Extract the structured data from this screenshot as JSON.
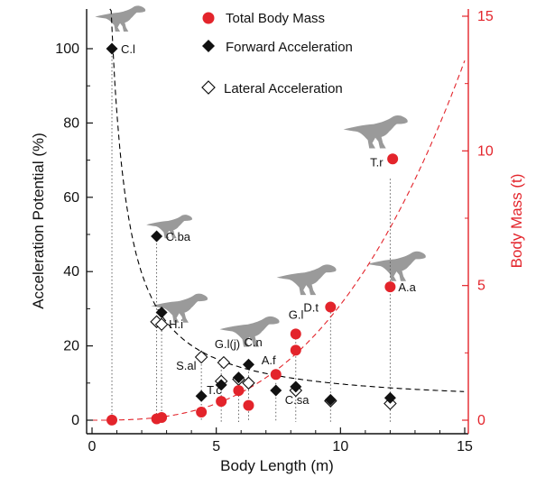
{
  "chart_data": {
    "type": "scatter",
    "title": "",
    "xlabel": "Body Length (m)",
    "ylabel_left": "Acceleration Potential (%)",
    "ylabel_right": "Body Mass (t)",
    "xlim": [
      0,
      15
    ],
    "ylim_left": [
      0,
      110
    ],
    "ylim_right": [
      0,
      15
    ],
    "x_ticks": [
      0,
      5,
      10,
      15
    ],
    "y_ticks_left": [
      0,
      20,
      40,
      60,
      80,
      100
    ],
    "y_ticks_right": [
      0,
      5,
      10,
      15
    ],
    "grid": false,
    "legend_position": "top-center",
    "colors": {
      "mass": "#e3242b",
      "acceleration": "#000000",
      "right_axis": "#e3242b"
    },
    "legend": [
      {
        "name": "Total Body Mass",
        "marker": "filled-red-circle"
      },
      {
        "name": "Forward Acceleration",
        "marker": "filled-black-diamond"
      },
      {
        "name": "Lateral Acceleration",
        "marker": "open-diamond"
      }
    ],
    "series": [
      {
        "name": "Total Body Mass",
        "axis": "right",
        "points": [
          {
            "x": 0.8,
            "y": 0.003
          },
          {
            "x": 2.6,
            "y": 0.05
          },
          {
            "x": 2.8,
            "y": 0.1
          },
          {
            "x": 4.4,
            "y": 0.3
          },
          {
            "x": 5.2,
            "y": 0.7
          },
          {
            "x": 5.9,
            "y": 1.1
          },
          {
            "x": 6.3,
            "y": 0.55
          },
          {
            "x": 7.4,
            "y": 1.7
          },
          {
            "x": 8.2,
            "y": 2.6
          },
          {
            "x": 8.2,
            "y": 3.2
          },
          {
            "x": 9.6,
            "y": 4.2
          },
          {
            "x": 12.0,
            "y": 4.95
          },
          {
            "x": 12.1,
            "y": 9.7
          }
        ]
      },
      {
        "name": "Forward Acceleration",
        "axis": "left",
        "points": [
          {
            "x": 0.8,
            "y": 100
          },
          {
            "x": 2.6,
            "y": 49.5
          },
          {
            "x": 2.8,
            "y": 29
          },
          {
            "x": 4.4,
            "y": 6.5
          },
          {
            "x": 5.2,
            "y": 9.5
          },
          {
            "x": 5.9,
            "y": 11.5
          },
          {
            "x": 6.3,
            "y": 15
          },
          {
            "x": 7.4,
            "y": 8
          },
          {
            "x": 8.2,
            "y": 9
          },
          {
            "x": 9.6,
            "y": 5.5
          },
          {
            "x": 12.0,
            "y": 6
          }
        ]
      },
      {
        "name": "Lateral Acceleration",
        "axis": "left",
        "points": [
          {
            "x": 2.6,
            "y": 26.5
          },
          {
            "x": 2.8,
            "y": 25.8
          },
          {
            "x": 4.4,
            "y": 17
          },
          {
            "x": 5.2,
            "y": 10.5
          },
          {
            "x": 5.3,
            "y": 15.5
          },
          {
            "x": 5.9,
            "y": 11
          },
          {
            "x": 6.3,
            "y": 10
          },
          {
            "x": 8.2,
            "y": 8
          },
          {
            "x": 9.6,
            "y": 5.2
          },
          {
            "x": 12.0,
            "y": 4.5
          }
        ]
      }
    ],
    "fit_curves": [
      {
        "name": "acceleration-fit",
        "axis": "left",
        "color": "#000000",
        "style": "dashed"
      },
      {
        "name": "mass-fit",
        "axis": "right",
        "color": "#e3242b",
        "style": "dashed"
      }
    ],
    "annotations": [
      {
        "text": "C.l",
        "x": 0.8,
        "y": 100,
        "axis": "left"
      },
      {
        "text": "C.ba",
        "x": 2.6,
        "y": 49.5,
        "axis": "left"
      },
      {
        "text": "H.i",
        "x": 2.8,
        "y": 26,
        "axis": "left"
      },
      {
        "text": "S.al",
        "x": 4.4,
        "y": 17,
        "axis": "left"
      },
      {
        "text": "T.c",
        "x": 5.2,
        "y": 9.5,
        "axis": "left"
      },
      {
        "text": "G.l(j)",
        "x": 5.3,
        "y": 15.5,
        "axis": "left"
      },
      {
        "text": "C.n",
        "x": 6.3,
        "y": 15,
        "axis": "left"
      },
      {
        "text": "A.f",
        "x": 7.4,
        "y": 1.7,
        "axis": "right"
      },
      {
        "text": "G.l",
        "x": 8.2,
        "y": 3.2,
        "axis": "right"
      },
      {
        "text": "C.sa",
        "x": 8.2,
        "y": 8,
        "axis": "left"
      },
      {
        "text": "D.t",
        "x": 9.6,
        "y": 4.2,
        "axis": "right"
      },
      {
        "text": "A.a",
        "x": 12.0,
        "y": 4.95,
        "axis": "right"
      },
      {
        "text": "T.r",
        "x": 12.1,
        "y": 9.7,
        "axis": "right"
      }
    ],
    "silhouettes": [
      {
        "icon": "theropod-silhouette-icon",
        "near": "C.l"
      },
      {
        "icon": "theropod-silhouette-icon",
        "near": "C.ba"
      },
      {
        "icon": "theropod-silhouette-icon",
        "near": "H.i"
      },
      {
        "icon": "theropod-silhouette-icon",
        "near": "C.n"
      },
      {
        "icon": "theropod-silhouette-icon",
        "near": "D.t"
      },
      {
        "icon": "theropod-silhouette-icon",
        "near": "A.a"
      },
      {
        "icon": "theropod-silhouette-icon",
        "near": "T.r"
      }
    ]
  }
}
